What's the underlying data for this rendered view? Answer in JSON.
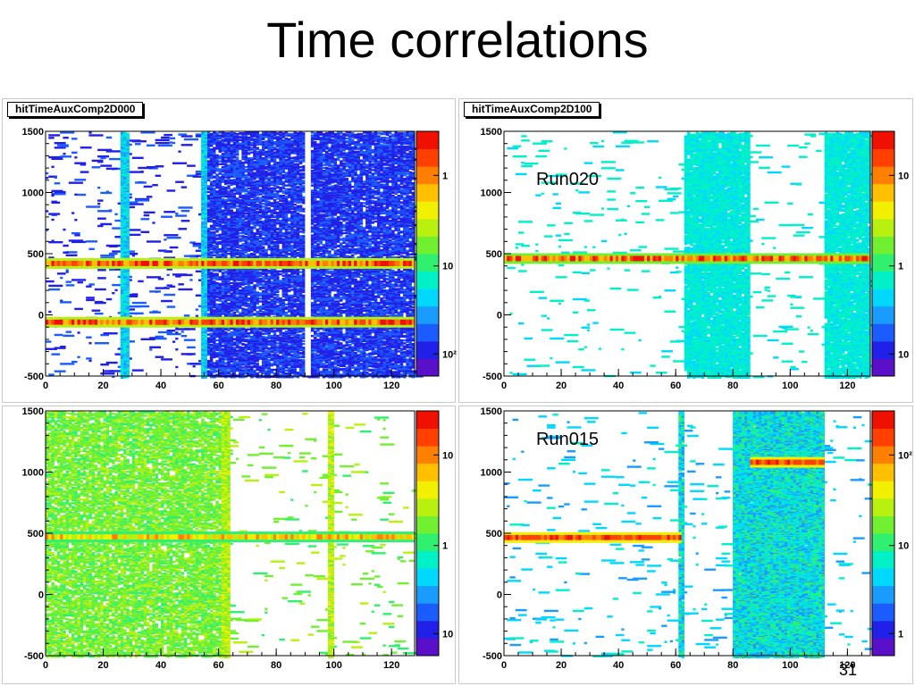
{
  "slide": {
    "title": "Time correlations",
    "page_number": "31"
  },
  "palette": [
    "#5a10c8",
    "#2020e8",
    "#1a5cff",
    "#1a9cff",
    "#00d8ff",
    "#00f0c8",
    "#30f070",
    "#70f030",
    "#b8f010",
    "#f0f000",
    "#ffc000",
    "#ff8000",
    "#ff4000",
    "#f01000"
  ],
  "chart_data": [
    {
      "type": "heatmap",
      "title": "hitTimeAuxComp2D000",
      "xlim": [
        0,
        128
      ],
      "ylim": [
        -500,
        1500
      ],
      "xticks": [
        "0",
        "20",
        "40",
        "60",
        "80",
        "100",
        "120"
      ],
      "yticks": [
        "-500",
        "0",
        "500",
        "1000",
        "1500"
      ],
      "zscale": "log",
      "zticks": [
        "1",
        "10",
        "10²"
      ],
      "run_label": "",
      "bands": [
        {
          "y": 420,
          "x_from": 0,
          "x_to": 128,
          "level": "high"
        },
        {
          "y": -60,
          "x_from": 0,
          "x_to": 128,
          "level": "high"
        }
      ],
      "columns": [
        {
          "x_from": 26,
          "x_to": 29,
          "level": "mid"
        },
        {
          "x_from": 54,
          "x_to": 56,
          "level": "mid"
        },
        {
          "x_from": 90,
          "x_to": 92,
          "level": "empty"
        }
      ],
      "dense_region": [
        56,
        128
      ]
    },
    {
      "type": "heatmap",
      "title": "hitTimeAuxComp2D100",
      "xlim": [
        0,
        128
      ],
      "ylim": [
        -500,
        1500
      ],
      "xticks": [
        "0",
        "20",
        "40",
        "60",
        "80",
        "100",
        "120"
      ],
      "yticks": [
        "-500",
        "0",
        "500",
        "1000",
        "1500"
      ],
      "zscale": "log",
      "zticks": [
        "10",
        "1",
        "10"
      ],
      "run_label": "Run020",
      "bands": [
        {
          "y": 460,
          "x_from": 0,
          "x_to": 128,
          "level": "mid"
        }
      ],
      "columns": [
        {
          "x_from": 63,
          "x_to": 86,
          "level": "low"
        },
        {
          "x_from": 112,
          "x_to": 128,
          "level": "low"
        }
      ],
      "dense_region": []
    },
    {
      "type": "heatmap",
      "title": "",
      "xlim": [
        0,
        128
      ],
      "ylim": [
        -500,
        1500
      ],
      "xticks": [
        "0",
        "20",
        "40",
        "60",
        "80",
        "100",
        "120"
      ],
      "yticks": [
        "-500",
        "0",
        "500",
        "1000",
        "1500"
      ],
      "zscale": "log",
      "zticks": [
        "10",
        "1",
        "10"
      ],
      "run_label": "",
      "bands": [
        {
          "y": 470,
          "x_from": 0,
          "x_to": 128,
          "level": "mid"
        }
      ],
      "columns": [
        {
          "x_from": 61,
          "x_to": 64,
          "level": "mid"
        },
        {
          "x_from": 98,
          "x_to": 100,
          "level": "mid"
        }
      ],
      "dense_region": [
        0,
        62
      ]
    },
    {
      "type": "heatmap",
      "title": "",
      "xlim": [
        0,
        128
      ],
      "ylim": [
        -500,
        1500
      ],
      "xticks": [
        "0",
        "20",
        "40",
        "60",
        "80",
        "100",
        "120"
      ],
      "yticks": [
        "-500",
        "0",
        "500",
        "1000",
        "1500"
      ],
      "zscale": "log",
      "zticks": [
        "10²",
        "10",
        "1"
      ],
      "run_label": "Run015",
      "bands": [
        {
          "y": 465,
          "x_from": 0,
          "x_to": 62,
          "level": "low"
        },
        {
          "y": 1080,
          "x_from": 86,
          "x_to": 112,
          "level": "high"
        }
      ],
      "columns": [
        {
          "x_from": 61,
          "x_to": 63,
          "level": "low"
        },
        {
          "x_from": 80,
          "x_to": 112,
          "level": "mid"
        }
      ],
      "dense_region": []
    }
  ]
}
